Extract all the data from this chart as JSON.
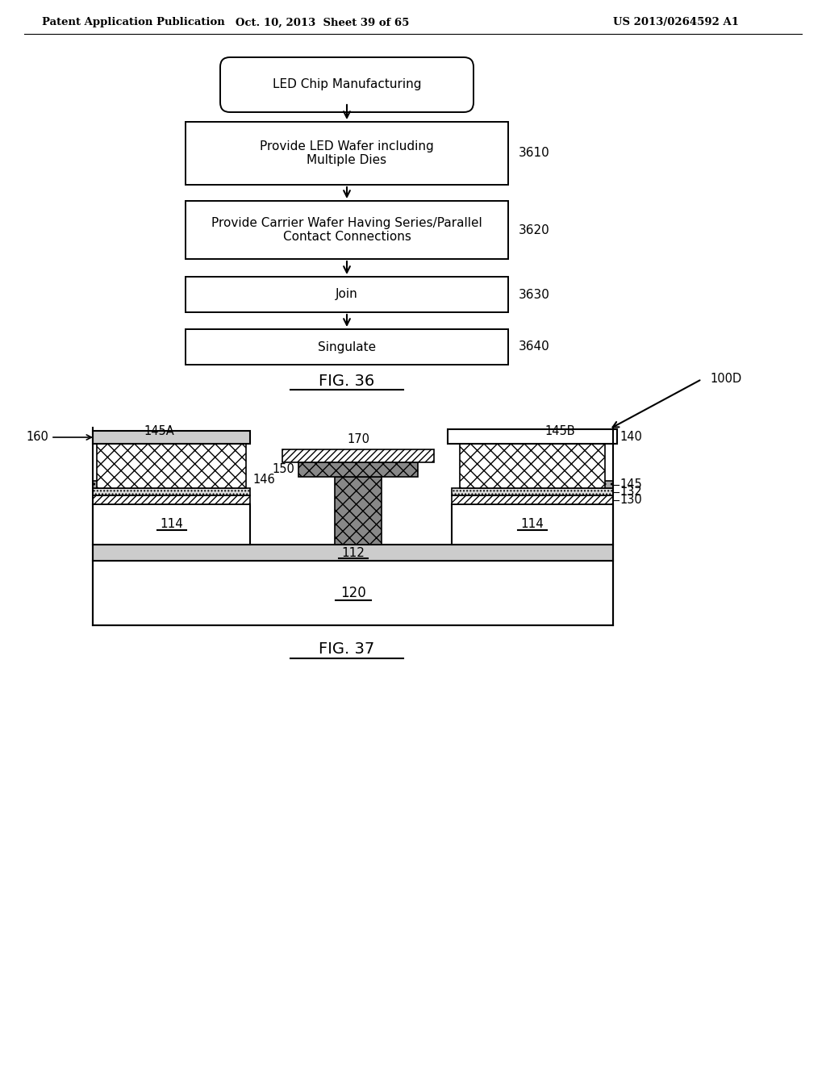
{
  "header_left": "Patent Application Publication",
  "header_mid": "Oct. 10, 2013  Sheet 39 of 65",
  "header_right": "US 2013/0264592 A1",
  "fig36_title": "FIG. 36",
  "fig37_title": "FIG. 37",
  "flowchart_start": "LED Chip Manufacturing",
  "flowchart_boxes": [
    {
      "label": "Provide LED Wafer including\nMultiple Dies",
      "ref": "3610"
    },
    {
      "label": "Provide Carrier Wafer Having Series/Parallel\nContact Connections",
      "ref": "3620"
    },
    {
      "label": "Join",
      "ref": "3630"
    },
    {
      "label": "Singulate",
      "ref": "3640"
    }
  ],
  "background_color": "#ffffff"
}
